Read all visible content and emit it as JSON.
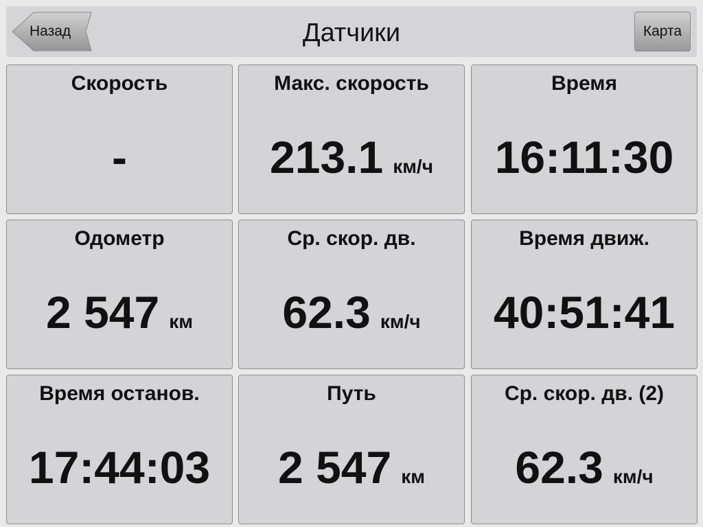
{
  "header": {
    "title": "Датчики",
    "back_label": "Назад",
    "map_label": "Карта"
  },
  "sensors": [
    {
      "label": "Скорость",
      "value": "-",
      "unit": ""
    },
    {
      "label": "Макс. скорость",
      "value": "213.1",
      "unit": "км/ч"
    },
    {
      "label": "Время",
      "value": "16:11:30",
      "unit": ""
    },
    {
      "label": "Одометр",
      "value": "2 547",
      "unit": "км"
    },
    {
      "label": "Ср. скор. дв.",
      "value": "62.3",
      "unit": "км/ч"
    },
    {
      "label": "Время движ.",
      "value": "40:51:41",
      "unit": ""
    },
    {
      "label": "Время останов.",
      "value": "17:44:03",
      "unit": ""
    },
    {
      "label": "Путь",
      "value": "2 547",
      "unit": "км"
    },
    {
      "label": "Ср. скор. дв. (2)",
      "value": "62.3",
      "unit": "км/ч"
    }
  ]
}
